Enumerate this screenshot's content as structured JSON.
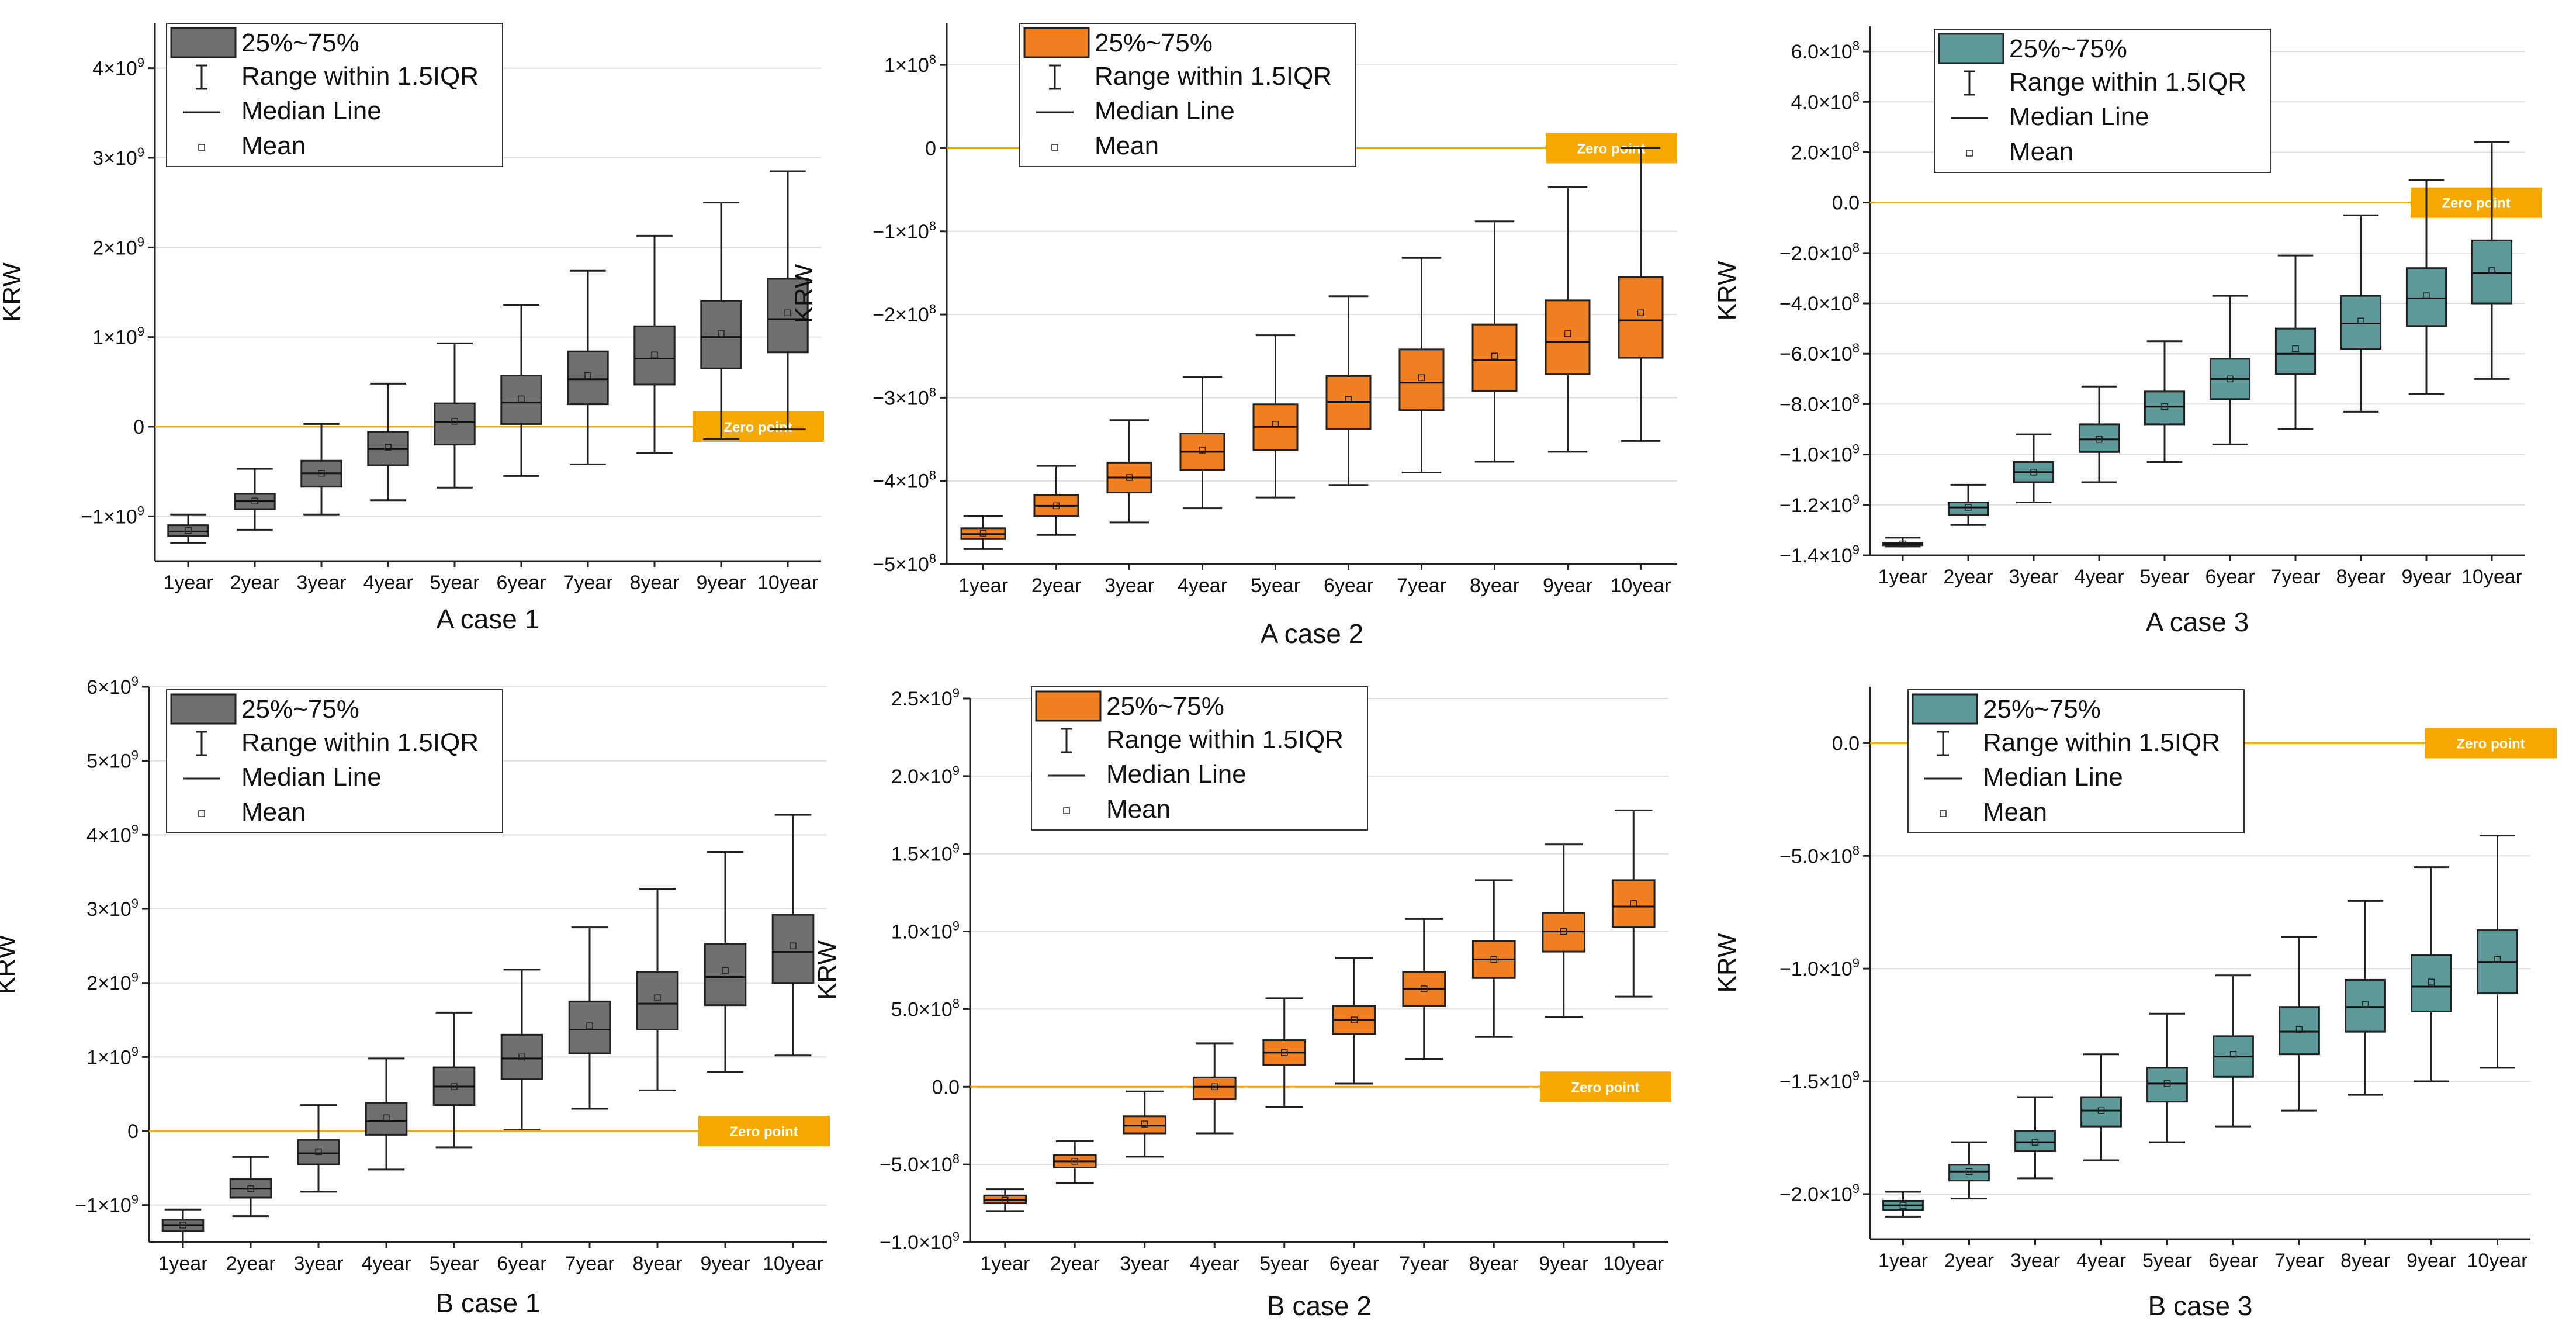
{
  "legend": {
    "box": "25%~75%",
    "whisker": "Range within 1.5IQR",
    "median": "Median Line",
    "mean": "Mean"
  },
  "zero_label": "Zero point",
  "colors": {
    "gray": "#707070",
    "orange": "#F07F22",
    "teal": "#5E9A99",
    "zero_line": "#F5A800",
    "grid": "#DDDDDD"
  },
  "chart_data": [
    {
      "type": "box",
      "title": "A case 1",
      "ylabel": "KRW",
      "color": "gray",
      "categories": [
        "1year",
        "2year",
        "3year",
        "4year",
        "5year",
        "6year",
        "7year",
        "8year",
        "9year",
        "10year"
      ],
      "ylim": [
        -1500000000.0,
        4500000000.0
      ],
      "yticks": [
        {
          "v": -1000000000.0,
          "m": "−1×10",
          "e": "9"
        },
        {
          "v": 0,
          "m": "0",
          "e": ""
        },
        {
          "v": 1000000000.0,
          "m": "1×10",
          "e": "9"
        },
        {
          "v": 2000000000.0,
          "m": "2×10",
          "e": "9"
        },
        {
          "v": 3000000000.0,
          "m": "3×10",
          "e": "9"
        },
        {
          "v": 4000000000.0,
          "m": "4×10",
          "e": "9"
        }
      ],
      "boxes": [
        {
          "min": -1300000000.0,
          "q1": -1220000000.0,
          "median": -1170000000.0,
          "q3": -1100000000.0,
          "max": -980000000.0,
          "mean": -1160000000.0
        },
        {
          "min": -1150000000.0,
          "q1": -920000000.0,
          "median": -830000000.0,
          "q3": -750000000.0,
          "max": -470000000.0,
          "mean": -830000000.0
        },
        {
          "min": -980000000.0,
          "q1": -670000000.0,
          "median": -520000000.0,
          "q3": -380000000.0,
          "max": 30000000.0,
          "mean": -520000000.0
        },
        {
          "min": -820000000.0,
          "q1": -430000000.0,
          "median": -250000000.0,
          "q3": -60000000.0,
          "max": 480000000.0,
          "mean": -230000000.0
        },
        {
          "min": -680000000.0,
          "q1": -200000000.0,
          "median": 50000000.0,
          "q3": 260000000.0,
          "max": 930000000.0,
          "mean": 60000000.0
        },
        {
          "min": -550000000.0,
          "q1": 30000000.0,
          "median": 270000000.0,
          "q3": 570000000.0,
          "max": 1360000000.0,
          "mean": 310000000.0
        },
        {
          "min": -420000000.0,
          "q1": 250000000.0,
          "median": 530000000.0,
          "q3": 840000000.0,
          "max": 1740000000.0,
          "mean": 570000000.0
        },
        {
          "min": -290000000.0,
          "q1": 470000000.0,
          "median": 760000000.0,
          "q3": 1120000000.0,
          "max": 2130000000.0,
          "mean": 800000000.0
        },
        {
          "min": -140000000.0,
          "q1": 650000000.0,
          "median": 1000000000.0,
          "q3": 1400000000.0,
          "max": 2500000000.0,
          "mean": 1040000000.0
        },
        {
          "min": -30000000.0,
          "q1": 830000000.0,
          "median": 1200000000.0,
          "q3": 1650000000.0,
          "max": 2850000000.0,
          "mean": 1270000000.0
        }
      ]
    },
    {
      "type": "box",
      "title": "A case 2",
      "ylabel": "KRW",
      "color": "orange",
      "categories": [
        "1year",
        "2year",
        "3year",
        "4year",
        "5year",
        "6year",
        "7year",
        "8year",
        "9year",
        "10year"
      ],
      "ylim": [
        -500000000.0,
        150000000.0
      ],
      "yticks": [
        {
          "v": -500000000.0,
          "m": "−5×10",
          "e": "8"
        },
        {
          "v": -400000000.0,
          "m": "−4×10",
          "e": "8"
        },
        {
          "v": -300000000.0,
          "m": "−3×10",
          "e": "8"
        },
        {
          "v": -200000000.0,
          "m": "−2×10",
          "e": "8"
        },
        {
          "v": -100000000.0,
          "m": "−1×10",
          "e": "8"
        },
        {
          "v": 0,
          "m": "0",
          "e": ""
        },
        {
          "v": 100000000.0,
          "m": "1×10",
          "e": "8"
        }
      ],
      "boxes": [
        {
          "min": -482000000.0,
          "q1": -470000000.0,
          "median": -464000000.0,
          "q3": -457000000.0,
          "max": -442000000.0,
          "mean": -463000000.0
        },
        {
          "min": -465000000.0,
          "q1": -442000000.0,
          "median": -430000000.0,
          "q3": -417000000.0,
          "max": -382000000.0,
          "mean": -430000000.0
        },
        {
          "min": -450000000.0,
          "q1": -414000000.0,
          "median": -396000000.0,
          "q3": -378000000.0,
          "max": -327000000.0,
          "mean": -396000000.0
        },
        {
          "min": -433000000.0,
          "q1": -387000000.0,
          "median": -365000000.0,
          "q3": -343000000.0,
          "max": -275000000.0,
          "mean": -363000000.0
        },
        {
          "min": -420000000.0,
          "q1": -363000000.0,
          "median": -335000000.0,
          "q3": -308000000.0,
          "max": -225000000.0,
          "mean": -332000000.0
        },
        {
          "min": -405000000.0,
          "q1": -338000000.0,
          "median": -305000000.0,
          "q3": -274000000.0,
          "max": -178000000.0,
          "mean": -302000000.0
        },
        {
          "min": -390000000.0,
          "q1": -315000000.0,
          "median": -282000000.0,
          "q3": -242000000.0,
          "max": -132000000.0,
          "mean": -276000000.0
        },
        {
          "min": -377000000.0,
          "q1": -292000000.0,
          "median": -255000000.0,
          "q3": -212000000.0,
          "max": -88000000.0,
          "mean": -250000000.0
        },
        {
          "min": -365000000.0,
          "q1": -272000000.0,
          "median": -233000000.0,
          "q3": -183000000.0,
          "max": -47000000.0,
          "mean": -223000000.0
        },
        {
          "min": -352000000.0,
          "q1": -252000000.0,
          "median": -207000000.0,
          "q3": -155000000.0,
          "max": 0,
          "mean": -198000000.0
        }
      ]
    },
    {
      "type": "box",
      "title": "A case 3",
      "ylabel": "KRW",
      "color": "teal",
      "categories": [
        "1year",
        "2year",
        "3year",
        "4year",
        "5year",
        "6year",
        "7year",
        "8year",
        "9year",
        "10year"
      ],
      "ylim": [
        -1400000000.0,
        700000000.0
      ],
      "yticks": [
        {
          "v": -1400000000.0,
          "m": "−1.4×10",
          "e": "9"
        },
        {
          "v": -1200000000.0,
          "m": "−1.2×10",
          "e": "9"
        },
        {
          "v": -1000000000.0,
          "m": "−1.0×10",
          "e": "9"
        },
        {
          "v": -800000000.0,
          "m": "−8.0×10",
          "e": "8"
        },
        {
          "v": -600000000.0,
          "m": "−6.0×10",
          "e": "8"
        },
        {
          "v": -400000000.0,
          "m": "−4.0×10",
          "e": "8"
        },
        {
          "v": -200000000.0,
          "m": "−2.0×10",
          "e": "8"
        },
        {
          "v": 0,
          "m": "0.0",
          "e": ""
        },
        {
          "v": 200000000.0,
          "m": "2.0×10",
          "e": "8"
        },
        {
          "v": 400000000.0,
          "m": "4.0×10",
          "e": "8"
        },
        {
          "v": 600000000.0,
          "m": "6.0×10",
          "e": "8"
        }
      ],
      "boxes": [
        {
          "min": -1365000000.0,
          "q1": -1360000000.0,
          "median": -1355000000.0,
          "q3": -1350000000.0,
          "max": -1330000000.0,
          "mean": -1355000000.0
        },
        {
          "min": -1280000000.0,
          "q1": -1240000000.0,
          "median": -1210000000.0,
          "q3": -1190000000.0,
          "max": -1120000000.0,
          "mean": -1210000000.0
        },
        {
          "min": -1190000000.0,
          "q1": -1110000000.0,
          "median": -1070000000.0,
          "q3": -1030000000.0,
          "max": -920000000.0,
          "mean": -1070000000.0
        },
        {
          "min": -1110000000.0,
          "q1": -990000000.0,
          "median": -940000000.0,
          "q3": -880000000.0,
          "max": -730000000.0,
          "mean": -940000000.0
        },
        {
          "min": -1030000000.0,
          "q1": -880000000.0,
          "median": -810000000.0,
          "q3": -750000000.0,
          "max": -550000000.0,
          "mean": -810000000.0
        },
        {
          "min": -960000000.0,
          "q1": -780000000.0,
          "median": -700000000.0,
          "q3": -620000000.0,
          "max": -370000000.0,
          "mean": -700000000.0
        },
        {
          "min": -900000000.0,
          "q1": -680000000.0,
          "median": -600000000.0,
          "q3": -500000000.0,
          "max": -210000000.0,
          "mean": -580000000.0
        },
        {
          "min": -830000000.0,
          "q1": -580000000.0,
          "median": -480000000.0,
          "q3": -370000000.0,
          "max": -50000000.0,
          "mean": -470000000.0
        },
        {
          "min": -760000000.0,
          "q1": -490000000.0,
          "median": -380000000.0,
          "q3": -260000000.0,
          "max": 90000000.0,
          "mean": -370000000.0
        },
        {
          "min": -700000000.0,
          "q1": -400000000.0,
          "median": -280000000.0,
          "q3": -150000000.0,
          "max": 240000000.0,
          "mean": -270000000.0
        }
      ]
    },
    {
      "type": "box",
      "title": "B case 1",
      "ylabel": "KRW",
      "color": "gray",
      "categories": [
        "1year",
        "2year",
        "3year",
        "4year",
        "5year",
        "6year",
        "7year",
        "8year",
        "9year",
        "10year"
      ],
      "ylim": [
        -1500000000.0,
        6000000000.0
      ],
      "yticks": [
        {
          "v": -1000000000.0,
          "m": "−1×10",
          "e": "9"
        },
        {
          "v": 0,
          "m": "0",
          "e": ""
        },
        {
          "v": 1000000000.0,
          "m": "1×10",
          "e": "9"
        },
        {
          "v": 2000000000.0,
          "m": "2×10",
          "e": "9"
        },
        {
          "v": 3000000000.0,
          "m": "3×10",
          "e": "9"
        },
        {
          "v": 4000000000.0,
          "m": "4×10",
          "e": "9"
        },
        {
          "v": 5000000000.0,
          "m": "5×10",
          "e": "9"
        },
        {
          "v": 6000000000.0,
          "m": "6×10",
          "e": "9"
        }
      ],
      "boxes": [
        {
          "min": -1500000000.0,
          "q1": -1350000000.0,
          "median": -1270000000.0,
          "q3": -1200000000.0,
          "max": -1060000000.0,
          "mean": -1270000000.0
        },
        {
          "min": -1150000000.0,
          "q1": -900000000.0,
          "median": -780000000.0,
          "q3": -650000000.0,
          "max": -350000000.0,
          "mean": -780000000.0
        },
        {
          "min": -820000000.0,
          "q1": -450000000.0,
          "median": -300000000.0,
          "q3": -120000000.0,
          "max": 350000000.0,
          "mean": -280000000.0
        },
        {
          "min": -520000000.0,
          "q1": -50000000.0,
          "median": 130000000.0,
          "q3": 380000000.0,
          "max": 980000000.0,
          "mean": 180000000.0
        },
        {
          "min": -220000000.0,
          "q1": 350000000.0,
          "median": 600000000.0,
          "q3": 860000000.0,
          "max": 1600000000.0,
          "mean": 600000000.0
        },
        {
          "min": 20000000.0,
          "q1": 700000000.0,
          "median": 980000000.0,
          "q3": 1300000000.0,
          "max": 2180000000.0,
          "mean": 1000000000.0
        },
        {
          "min": 300000000.0,
          "q1": 1050000000.0,
          "median": 1370000000.0,
          "q3": 1750000000.0,
          "max": 2750000000.0,
          "mean": 1420000000.0
        },
        {
          "min": 550000000.0,
          "q1": 1370000000.0,
          "median": 1720000000.0,
          "q3": 2150000000.0,
          "max": 3270000000.0,
          "mean": 1800000000.0
        },
        {
          "min": 800000000.0,
          "q1": 1700000000.0,
          "median": 2080000000.0,
          "q3": 2530000000.0,
          "max": 3770000000.0,
          "mean": 2170000000.0
        },
        {
          "min": 1020000000.0,
          "q1": 2000000000.0,
          "median": 2420000000.0,
          "q3": 2920000000.0,
          "max": 4270000000.0,
          "mean": 2500000000.0
        }
      ]
    },
    {
      "type": "box",
      "title": "B case 2",
      "ylabel": "KRW",
      "color": "orange",
      "categories": [
        "1year",
        "2year",
        "3year",
        "4year",
        "5year",
        "6year",
        "7year",
        "8year",
        "9year",
        "10year"
      ],
      "ylim": [
        -1000000000.0,
        2500000000.0
      ],
      "yticks": [
        {
          "v": -1000000000.0,
          "m": "−1.0×10",
          "e": "9"
        },
        {
          "v": -500000000.0,
          "m": "−5.0×10",
          "e": "8"
        },
        {
          "v": 0,
          "m": "0.0",
          "e": ""
        },
        {
          "v": 500000000.0,
          "m": "5.0×10",
          "e": "8"
        },
        {
          "v": 1000000000.0,
          "m": "1.0×10",
          "e": "9"
        },
        {
          "v": 1500000000.0,
          "m": "1.5×10",
          "e": "9"
        },
        {
          "v": 2000000000.0,
          "m": "2.0×10",
          "e": "9"
        },
        {
          "v": 2500000000.0,
          "m": "2.5×10",
          "e": "9"
        }
      ],
      "boxes": [
        {
          "min": -800000000.0,
          "q1": -750000000.0,
          "median": -730000000.0,
          "q3": -700000000.0,
          "max": -660000000.0,
          "mean": -730000000.0
        },
        {
          "min": -620000000.0,
          "q1": -520000000.0,
          "median": -480000000.0,
          "q3": -440000000.0,
          "max": -350000000.0,
          "mean": -480000000.0
        },
        {
          "min": -450000000.0,
          "q1": -300000000.0,
          "median": -250000000.0,
          "q3": -190000000.0,
          "max": -30000000.0,
          "mean": -240000000.0
        },
        {
          "min": -300000000.0,
          "q1": -80000000.0,
          "median": 0.0,
          "q3": 60000000.0,
          "max": 280000000.0,
          "mean": 0.0
        },
        {
          "min": -130000000.0,
          "q1": 140000000.0,
          "median": 220000000.0,
          "q3": 300000000.0,
          "max": 570000000.0,
          "mean": 220000000.0
        },
        {
          "min": 20000000.0,
          "q1": 340000000.0,
          "median": 430000000.0,
          "q3": 520000000.0,
          "max": 830000000.0,
          "mean": 430000000.0
        },
        {
          "min": 180000000.0,
          "q1": 520000000.0,
          "median": 630000000.0,
          "q3": 740000000.0,
          "max": 1080000000.0,
          "mean": 630000000.0
        },
        {
          "min": 320000000.0,
          "q1": 700000000.0,
          "median": 820000000.0,
          "q3": 940000000.0,
          "max": 1330000000.0,
          "mean": 820000000.0
        },
        {
          "min": 450000000.0,
          "q1": 870000000.0,
          "median": 1000000000.0,
          "q3": 1120000000.0,
          "max": 1560000000.0,
          "mean": 1000000000.0
        },
        {
          "min": 580000000.0,
          "q1": 1030000000.0,
          "median": 1160000000.0,
          "q3": 1330000000.0,
          "max": 1780000000.0,
          "mean": 1180000000.0
        }
      ]
    },
    {
      "type": "box",
      "title": "B case 3",
      "ylabel": "KRW",
      "color": "teal",
      "categories": [
        "1year",
        "2year",
        "3year",
        "4year",
        "5year",
        "6year",
        "7year",
        "8year",
        "9year",
        "10year"
      ],
      "ylim": [
        -2200000000.0,
        250000000.0
      ],
      "yticks": [
        {
          "v": -2000000000.0,
          "m": "−2.0×10",
          "e": "9"
        },
        {
          "v": -1500000000.0,
          "m": "−1.5×10",
          "e": "9"
        },
        {
          "v": -1000000000.0,
          "m": "−1.0×10",
          "e": "9"
        },
        {
          "v": -500000000.0,
          "m": "−5.0×10",
          "e": "8"
        },
        {
          "v": 0,
          "m": "0.0",
          "e": ""
        }
      ],
      "boxes": [
        {
          "min": -2100000000.0,
          "q1": -2070000000.0,
          "median": -2050000000.0,
          "q3": -2030000000.0,
          "max": -1990000000.0,
          "mean": -2050000000.0
        },
        {
          "min": -2020000000.0,
          "q1": -1940000000.0,
          "median": -1900000000.0,
          "q3": -1870000000.0,
          "max": -1770000000.0,
          "mean": -1900000000.0
        },
        {
          "min": -1930000000.0,
          "q1": -1810000000.0,
          "median": -1770000000.0,
          "q3": -1720000000.0,
          "max": -1570000000.0,
          "mean": -1770000000.0
        },
        {
          "min": -1850000000.0,
          "q1": -1700000000.0,
          "median": -1630000000.0,
          "q3": -1570000000.0,
          "max": -1380000000.0,
          "mean": -1630000000.0
        },
        {
          "min": -1770000000.0,
          "q1": -1590000000.0,
          "median": -1510000000.0,
          "q3": -1440000000.0,
          "max": -1200000000.0,
          "mean": -1510000000.0
        },
        {
          "min": -1700000000.0,
          "q1": -1480000000.0,
          "median": -1390000000.0,
          "q3": -1300000000.0,
          "max": -1030000000.0,
          "mean": -1380000000.0
        },
        {
          "min": -1630000000.0,
          "q1": -1380000000.0,
          "median": -1280000000.0,
          "q3": -1170000000.0,
          "max": -860000000.0,
          "mean": -1270000000.0
        },
        {
          "min": -1560000000.0,
          "q1": -1280000000.0,
          "median": -1170000000.0,
          "q3": -1050000000.0,
          "max": -700000000.0,
          "mean": -1160000000.0
        },
        {
          "min": -1500000000.0,
          "q1": -1190000000.0,
          "median": -1080000000.0,
          "q3": -940000000.0,
          "max": -550000000.0,
          "mean": -1060000000.0
        },
        {
          "min": -1440000000.0,
          "q1": -1110000000.0,
          "median": -970000000.0,
          "q3": -830000000.0,
          "max": -410000000.0,
          "mean": -960000000.0
        }
      ]
    }
  ]
}
